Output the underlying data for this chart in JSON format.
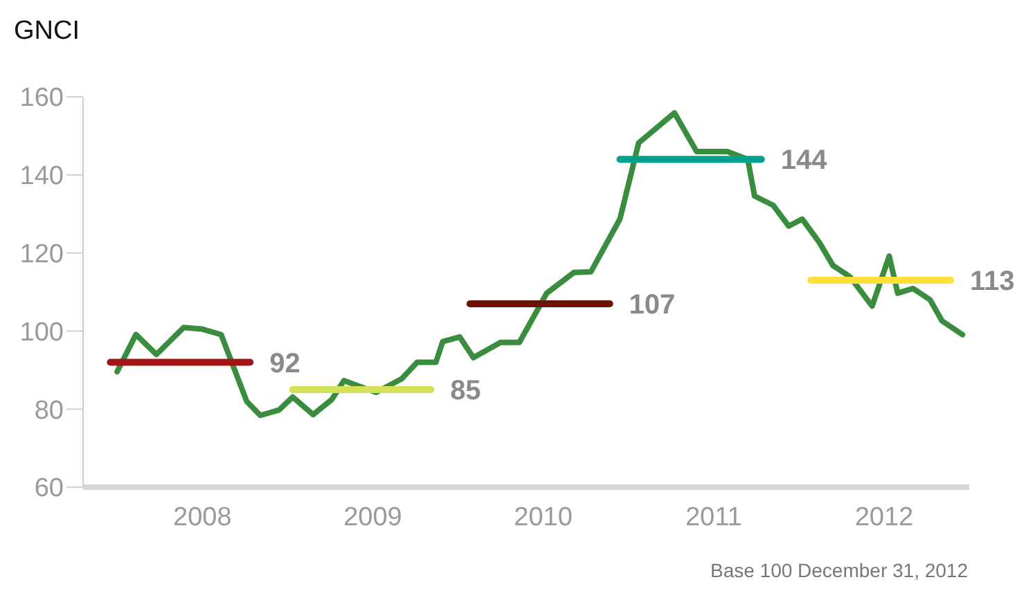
{
  "chart_data": {
    "type": "line",
    "title": "GNCI",
    "annotations": [
      "Base 100 December 31, 2012"
    ],
    "xlim": [
      2007.8,
      2013
    ],
    "xticks": [
      {
        "value": 2008.5,
        "label": "2008"
      },
      {
        "value": 2009.5,
        "label": "2009"
      },
      {
        "value": 2010.5,
        "label": "2010"
      },
      {
        "value": 2011.5,
        "label": "2011"
      },
      {
        "value": 2012.5,
        "label": "2012"
      }
    ],
    "ylim": [
      60,
      160
    ],
    "yticks": [
      60,
      80,
      100,
      120,
      140,
      160
    ],
    "marker": "none",
    "line_style": "solid",
    "series": [
      {
        "color": "#3a8c3f",
        "x": [
          2008.0,
          2008.11,
          2008.23,
          2008.39,
          2008.5,
          2008.61,
          2008.76,
          2008.84,
          2008.95,
          2009.03,
          2009.15,
          2009.26,
          2009.33,
          2009.52,
          2009.67,
          2009.76,
          2009.87,
          2009.91,
          2010.01,
          2010.09,
          2010.25,
          2010.36,
          2010.52,
          2010.68,
          2010.78,
          2010.95,
          2011.06,
          2011.27,
          2011.4,
          2011.58,
          2011.7,
          2011.74,
          2011.85,
          2011.94,
          2012.02,
          2012.12,
          2012.2,
          2012.3,
          2012.43,
          2012.53,
          2012.58,
          2012.67,
          2012.77,
          2012.84,
          2012.96
        ],
        "values": [
          89.6,
          99.1,
          94,
          100.9,
          100.5,
          99.1,
          82,
          78.4,
          79.8,
          83.1,
          78.6,
          82.5,
          87.3,
          84.3,
          87.8,
          92,
          92,
          97.3,
          98.5,
          93.2,
          97.1,
          97.1,
          109.7,
          115,
          115.2,
          128.7,
          148.2,
          155.9,
          146,
          146,
          144,
          134.6,
          132.2,
          126.9,
          128.7,
          122.7,
          116.8,
          113.9,
          106.4,
          119.2,
          109.7,
          110.9,
          108,
          102.6,
          99.1
        ]
      },
      {
        "color": "#a31515",
        "x": [
          2007.96,
          2008.78
        ],
        "values": [
          92,
          92
        ],
        "value_labels": [
          null,
          "92"
        ]
      },
      {
        "color": "#d4e157",
        "x": [
          2009.03,
          2009.84
        ],
        "values": [
          85,
          85
        ],
        "value_labels": [
          null,
          "85"
        ]
      },
      {
        "color": "#6b1306",
        "x": [
          2010.07,
          2010.89
        ],
        "values": [
          107,
          107
        ],
        "value_labels": [
          null,
          "107"
        ]
      },
      {
        "color": "#00a08a",
        "x": [
          2010.95,
          2011.78
        ],
        "values": [
          144,
          144
        ],
        "value_labels": [
          null,
          "144"
        ]
      },
      {
        "color": "#fde03a",
        "x": [
          2012.07,
          2012.89
        ],
        "values": [
          113,
          113
        ],
        "value_labels": [
          null,
          "113"
        ]
      }
    ]
  }
}
